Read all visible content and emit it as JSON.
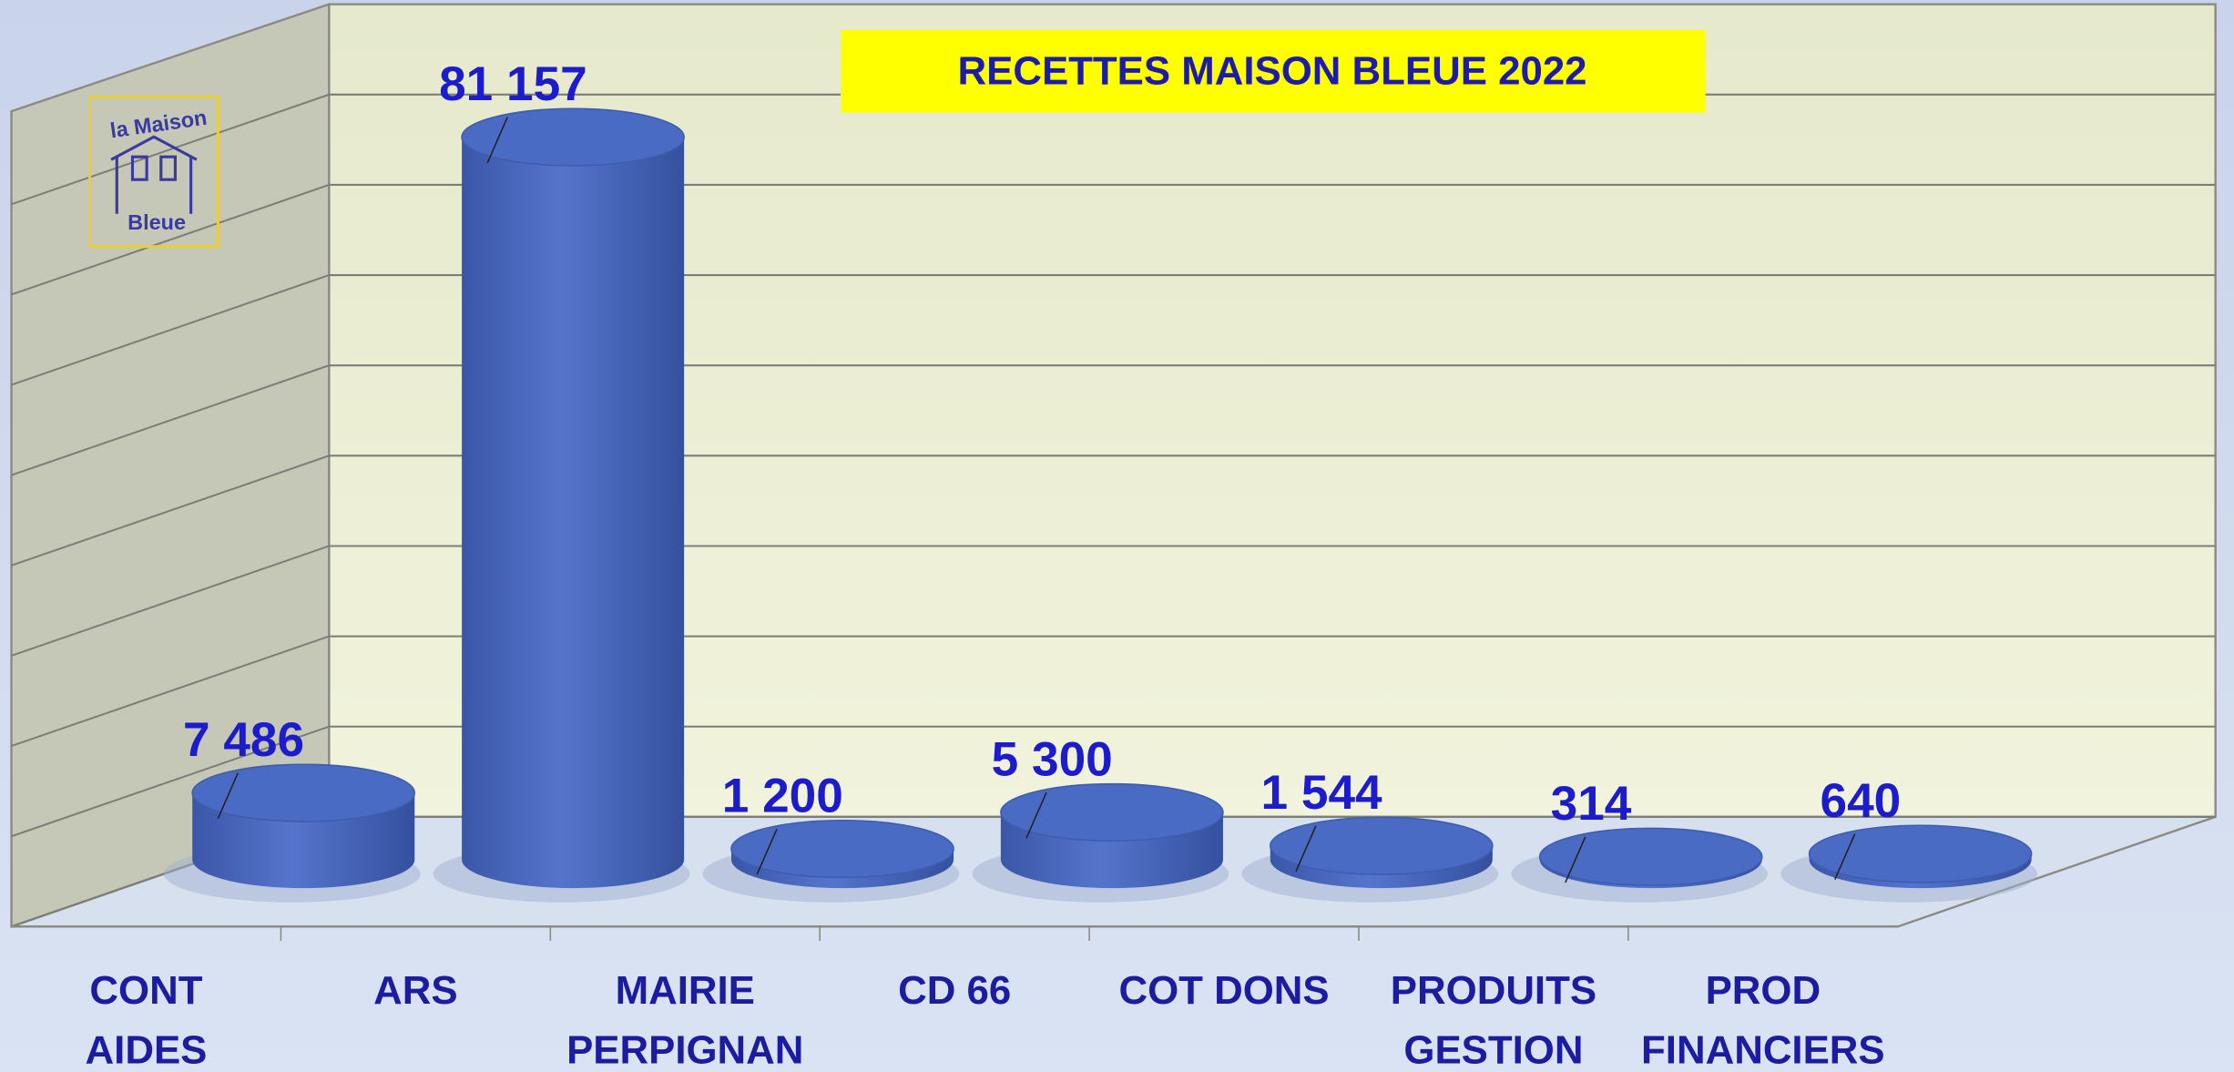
{
  "chart_data": {
    "type": "bar3d",
    "title": "RECETTES MAISON BLEUE 2022",
    "logo": {
      "line1": "la Maison",
      "line2": "Bleue"
    },
    "categories": [
      [
        "CONT",
        "AIDES"
      ],
      [
        "ARS"
      ],
      [
        "MAIRIE",
        "PERPIGNAN"
      ],
      [
        "CD 66"
      ],
      [
        "COT DONS"
      ],
      [
        "PRODUITS",
        "GESTION"
      ],
      [
        "PROD",
        "FINANCIERS"
      ]
    ],
    "values": [
      7486,
      81157,
      1200,
      5300,
      1544,
      314,
      640
    ],
    "value_labels": [
      "7 486",
      "81 157",
      "1 200",
      "5 300",
      "1 544",
      "314",
      "640"
    ],
    "color": "#4a6bc4",
    "ylim": [
      0,
      90000
    ],
    "yticks": [
      0,
      10000,
      20000,
      30000,
      40000,
      50000,
      60000,
      70000,
      80000
    ],
    "grid": true
  }
}
